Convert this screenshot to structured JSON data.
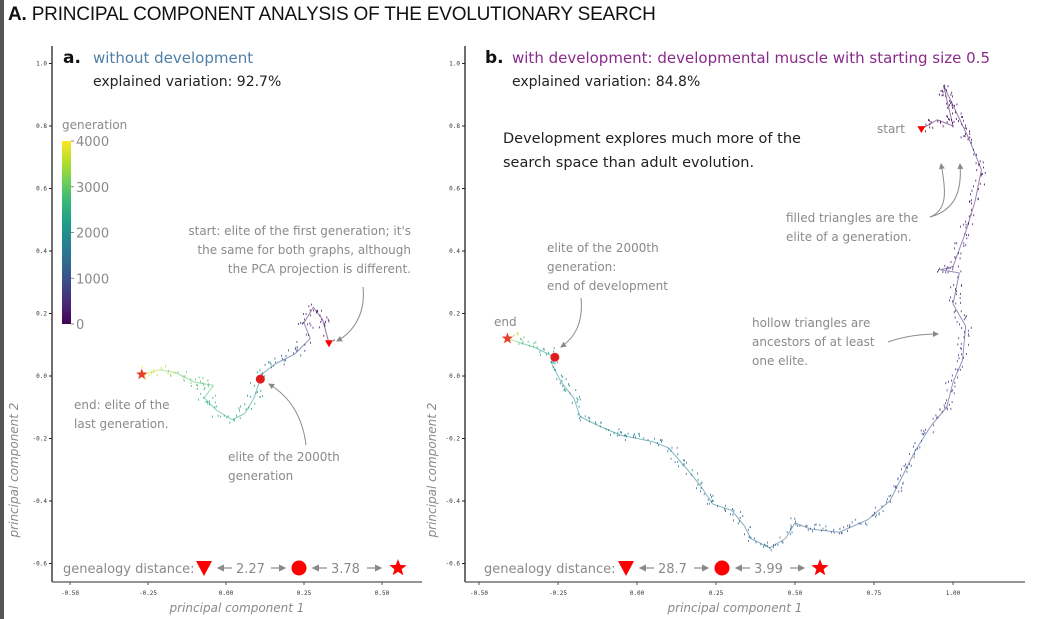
{
  "figure": {
    "title_bold": "A.",
    "title_rest": "PRINCIPAL COMPONENT ANALYSIS OF THE EVOLUTIONARY SEARCH"
  },
  "colors": {
    "panel_a_title": "#4e7fa8",
    "panel_b_title": "#8a2a8a",
    "marker_red": "#ff0000",
    "annotation_gray": "#8a8a8a",
    "viridis": [
      "#440154",
      "#482878",
      "#3e4989",
      "#31688e",
      "#26828e",
      "#1f9e89",
      "#35b779",
      "#6ece58",
      "#b5de2b",
      "#fde725"
    ]
  },
  "chart_data": [
    {
      "type": "scatter",
      "panel_letter": "a.",
      "title": "without development",
      "subtitle": "explained variation: 92.7%",
      "xlabel": "principal component 1",
      "ylabel": "principal component 2",
      "xlim": [
        -0.55,
        0.62
      ],
      "ylim": [
        -0.655,
        1.05
      ],
      "xticks": [
        "-0.50",
        "-0.25",
        "0.00",
        "0.25",
        "0.50"
      ],
      "xtick_values": [
        -0.5,
        -0.25,
        0.0,
        0.25,
        0.5
      ],
      "yticks": [
        "1.0",
        "0.8",
        "0.6",
        "0.4",
        "0.2",
        "0.0",
        "-0.2",
        "-0.4",
        "-0.6"
      ],
      "ytick_values": [
        1.0,
        0.8,
        0.6,
        0.4,
        0.2,
        0.0,
        -0.2,
        -0.4,
        -0.6
      ],
      "legend": {
        "title": "generation",
        "ticks": [
          "4000",
          "3000",
          "2000",
          "1000",
          "0"
        ],
        "tick_values": [
          4000,
          3000,
          2000,
          1000,
          0
        ],
        "range": [
          0,
          4000
        ],
        "placement": "top-left"
      },
      "trajectory": [
        {
          "pc1": 0.33,
          "pc2": 0.105,
          "gen": 0
        },
        {
          "pc1": 0.31,
          "pc2": 0.18,
          "gen": 150
        },
        {
          "pc1": 0.28,
          "pc2": 0.22,
          "gen": 300
        },
        {
          "pc1": 0.25,
          "pc2": 0.17,
          "gen": 500
        },
        {
          "pc1": 0.27,
          "pc2": 0.12,
          "gen": 700
        },
        {
          "pc1": 0.22,
          "pc2": 0.07,
          "gen": 1000
        },
        {
          "pc1": 0.16,
          "pc2": 0.04,
          "gen": 1400
        },
        {
          "pc1": 0.12,
          "pc2": 0.01,
          "gen": 1800
        },
        {
          "pc1": 0.11,
          "pc2": -0.01,
          "gen": 2000
        },
        {
          "pc1": 0.09,
          "pc2": -0.07,
          "gen": 2200
        },
        {
          "pc1": 0.06,
          "pc2": -0.12,
          "gen": 2350
        },
        {
          "pc1": 0.02,
          "pc2": -0.14,
          "gen": 2450
        },
        {
          "pc1": -0.03,
          "pc2": -0.11,
          "gen": 2550
        },
        {
          "pc1": -0.07,
          "pc2": -0.07,
          "gen": 2650
        },
        {
          "pc1": -0.04,
          "pc2": -0.03,
          "gen": 2750
        },
        {
          "pc1": -0.1,
          "pc2": -0.02,
          "gen": 2900
        },
        {
          "pc1": -0.16,
          "pc2": 0.01,
          "gen": 3200
        },
        {
          "pc1": -0.21,
          "pc2": 0.02,
          "gen": 3500
        },
        {
          "pc1": -0.25,
          "pc2": 0.01,
          "gen": 3800
        },
        {
          "pc1": -0.27,
          "pc2": 0.005,
          "gen": 4000
        }
      ],
      "markers": {
        "start": {
          "pc1": 0.33,
          "pc2": 0.105,
          "shape": "triangle-down"
        },
        "mid": {
          "pc1": 0.11,
          "pc2": -0.01,
          "shape": "circle"
        },
        "end": {
          "pc1": -0.27,
          "pc2": 0.005,
          "shape": "star"
        }
      },
      "annotations": {
        "start": [
          "start: elite of the first generation; it's",
          "the same for both graphs, although",
          "the PCA projection is different."
        ],
        "end": [
          "end: elite of the",
          "last generation."
        ],
        "mid": [
          "elite of the 2000th",
          "generation"
        ]
      },
      "genealogy": {
        "label": "genealogy distance:",
        "d1": "2.27",
        "d2": "3.78"
      }
    },
    {
      "type": "scatter",
      "panel_letter": "b.",
      "title": "with development: developmental muscle with starting size 0.5",
      "subtitle": "explained variation: 84.8%",
      "xlabel": "principal component 1",
      "ylabel": "principal component 2",
      "xlim": [
        -0.54,
        1.23
      ],
      "ylim": [
        -0.655,
        1.05
      ],
      "xticks": [
        "-0.50",
        "-0.25",
        "0.00",
        "0.25",
        "0.50",
        "0.75",
        "1.00"
      ],
      "xtick_values": [
        -0.5,
        -0.25,
        0.0,
        0.25,
        0.5,
        0.75,
        1.0
      ],
      "yticks": [
        "1.0",
        "0.8",
        "0.6",
        "0.4",
        "0.2",
        "0.0",
        "-0.2",
        "-0.4",
        "-0.6"
      ],
      "ytick_values": [
        1.0,
        0.8,
        0.6,
        0.4,
        0.2,
        0.0,
        -0.2,
        -0.4,
        -0.6
      ],
      "trajectory": [
        {
          "pc1": 0.9,
          "pc2": 0.79,
          "gen": 0
        },
        {
          "pc1": 0.95,
          "pc2": 0.82,
          "gen": 60
        },
        {
          "pc1": 1.0,
          "pc2": 0.8,
          "gen": 120
        },
        {
          "pc1": 0.97,
          "pc2": 0.93,
          "gen": 160
        },
        {
          "pc1": 1.05,
          "pc2": 0.76,
          "gen": 220
        },
        {
          "pc1": 1.09,
          "pc2": 0.66,
          "gen": 280
        },
        {
          "pc1": 1.07,
          "pc2": 0.56,
          "gen": 340
        },
        {
          "pc1": 1.04,
          "pc2": 0.46,
          "gen": 400
        },
        {
          "pc1": 1.0,
          "pc2": 0.35,
          "gen": 460
        },
        {
          "pc1": 0.96,
          "pc2": 0.34,
          "gen": 500
        },
        {
          "pc1": 1.02,
          "pc2": 0.33,
          "gen": 540
        },
        {
          "pc1": 1.0,
          "pc2": 0.23,
          "gen": 600
        },
        {
          "pc1": 1.04,
          "pc2": 0.16,
          "gen": 660
        },
        {
          "pc1": 1.03,
          "pc2": 0.05,
          "gen": 720
        },
        {
          "pc1": 1.0,
          "pc2": -0.02,
          "gen": 780
        },
        {
          "pc1": 0.98,
          "pc2": -0.1,
          "gen": 840
        },
        {
          "pc1": 0.93,
          "pc2": -0.16,
          "gen": 900
        },
        {
          "pc1": 0.88,
          "pc2": -0.24,
          "gen": 960
        },
        {
          "pc1": 0.84,
          "pc2": -0.32,
          "gen": 1020
        },
        {
          "pc1": 0.8,
          "pc2": -0.4,
          "gen": 1080
        },
        {
          "pc1": 0.73,
          "pc2": -0.46,
          "gen": 1140
        },
        {
          "pc1": 0.64,
          "pc2": -0.5,
          "gen": 1200
        },
        {
          "pc1": 0.55,
          "pc2": -0.49,
          "gen": 1260
        },
        {
          "pc1": 0.5,
          "pc2": -0.47,
          "gen": 1300
        },
        {
          "pc1": 0.47,
          "pc2": -0.52,
          "gen": 1340
        },
        {
          "pc1": 0.42,
          "pc2": -0.55,
          "gen": 1380
        },
        {
          "pc1": 0.36,
          "pc2": -0.52,
          "gen": 1430
        },
        {
          "pc1": 0.34,
          "pc2": -0.48,
          "gen": 1470
        },
        {
          "pc1": 0.3,
          "pc2": -0.43,
          "gen": 1520
        },
        {
          "pc1": 0.24,
          "pc2": -0.41,
          "gen": 1570
        },
        {
          "pc1": 0.2,
          "pc2": -0.35,
          "gen": 1620
        },
        {
          "pc1": 0.16,
          "pc2": -0.3,
          "gen": 1670
        },
        {
          "pc1": 0.1,
          "pc2": -0.23,
          "gen": 1720
        },
        {
          "pc1": 0.05,
          "pc2": -0.21,
          "gen": 1760
        },
        {
          "pc1": -0.05,
          "pc2": -0.19,
          "gen": 1800
        },
        {
          "pc1": -0.12,
          "pc2": -0.16,
          "gen": 1850
        },
        {
          "pc1": -0.18,
          "pc2": -0.13,
          "gen": 1890
        },
        {
          "pc1": -0.2,
          "pc2": -0.07,
          "gen": 1920
        },
        {
          "pc1": -0.24,
          "pc2": -0.02,
          "gen": 1950
        },
        {
          "pc1": -0.27,
          "pc2": 0.04,
          "gen": 1980
        },
        {
          "pc1": -0.26,
          "pc2": 0.06,
          "gen": 2000
        },
        {
          "pc1": -0.32,
          "pc2": 0.09,
          "gen": 2500
        },
        {
          "pc1": -0.38,
          "pc2": 0.11,
          "gen": 3200
        },
        {
          "pc1": -0.41,
          "pc2": 0.12,
          "gen": 4000
        }
      ],
      "markers": {
        "start": {
          "pc1": 0.9,
          "pc2": 0.79,
          "shape": "triangle-down"
        },
        "mid": {
          "pc1": -0.26,
          "pc2": 0.06,
          "shape": "circle"
        },
        "end": {
          "pc1": -0.41,
          "pc2": 0.12,
          "shape": "star"
        }
      },
      "annotations": {
        "headline": [
          "Development explores much more of the",
          "search space than adult evolution."
        ],
        "start": [
          "start"
        ],
        "filled": [
          "filled triangles are the",
          "elite of a generation."
        ],
        "mid": [
          "elite of the 2000th",
          "generation:",
          "end of development"
        ],
        "end": [
          "end"
        ],
        "hollow": [
          "hollow triangles are",
          "ancestors of at least",
          "one elite."
        ]
      },
      "genealogy": {
        "label": "genealogy distance:",
        "d1": "28.7",
        "d2": "3.99"
      }
    }
  ]
}
